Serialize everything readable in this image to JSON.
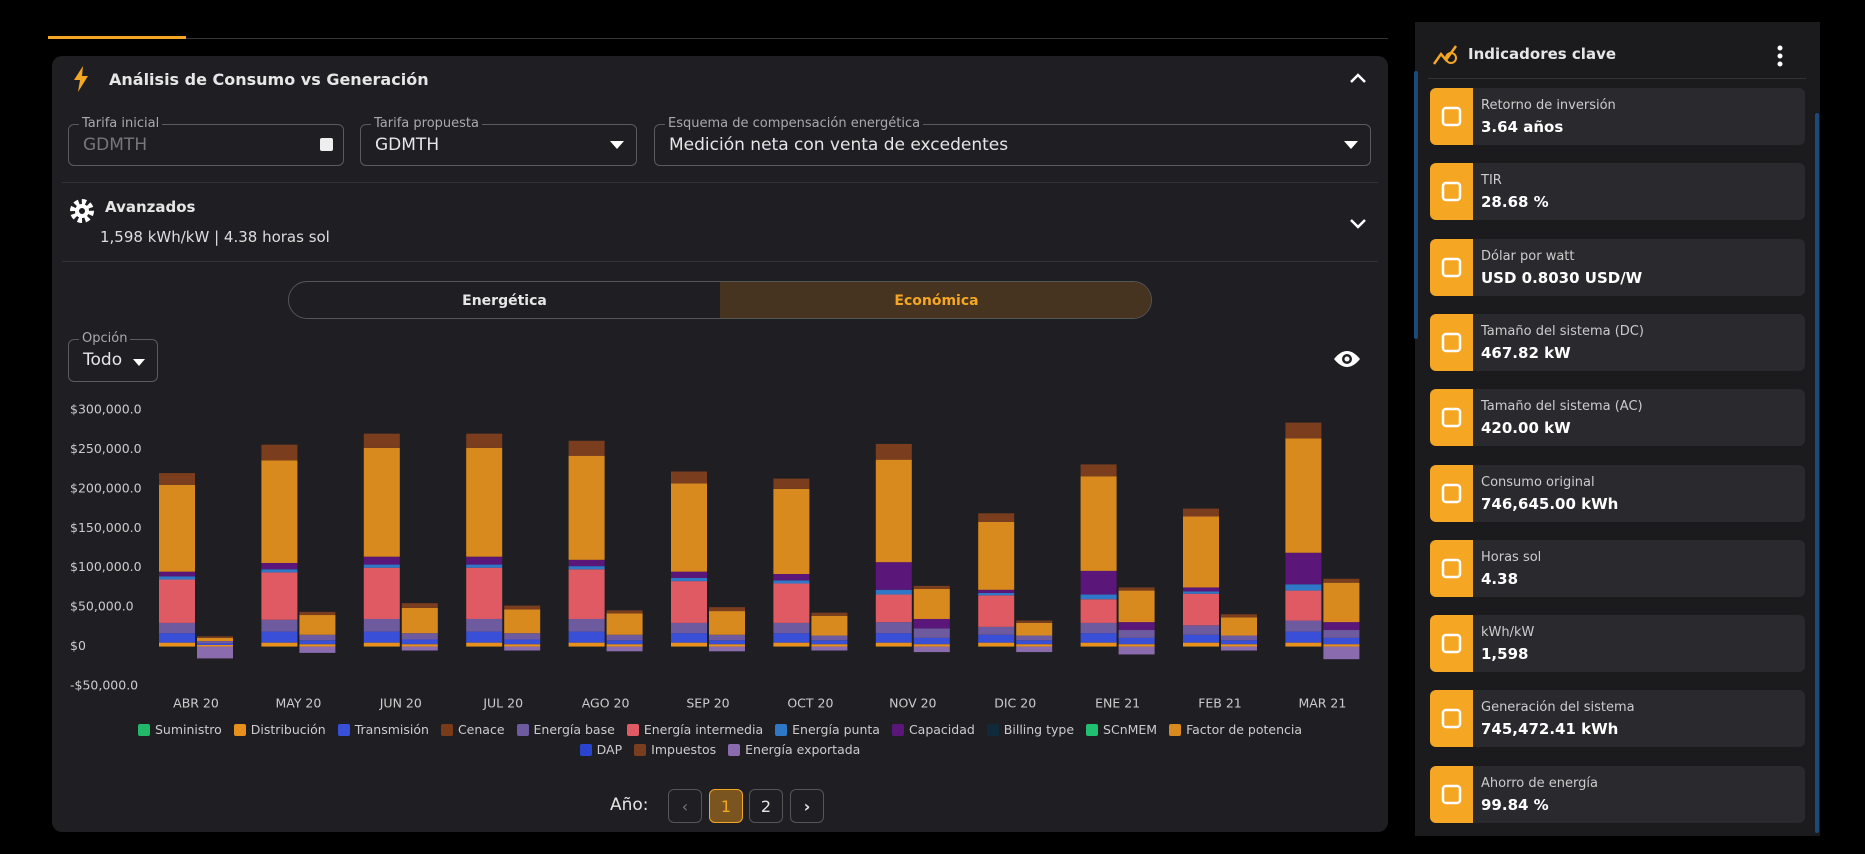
{
  "section": {
    "title": "Análisis de Consumo vs Generación"
  },
  "fields": [
    {
      "label": "Tarifa inicial",
      "value": "GDMTH"
    },
    {
      "label": "Tarifa propuesta",
      "value": "GDMTH"
    },
    {
      "label": "Esquema de compensación energética",
      "value": "Medición neta con venta de excedentes"
    }
  ],
  "advanced": {
    "title": "Avanzados",
    "subtitle": "1,598 kWh/kW | 4.38 horas sol"
  },
  "toggle": [
    "Energética",
    "Económica"
  ],
  "option": {
    "label": "Opción",
    "value": "Todo"
  },
  "chart_data": {
    "type": "bar",
    "stacked": true,
    "grid": false,
    "categories": [
      "ABR 20",
      "MAY 20",
      "JUN 20",
      "JUL 20",
      "AGO 20",
      "SEP 20",
      "OCT 20",
      "NOV 20",
      "DIC 20",
      "ENE 21",
      "FEB 21",
      "MAR 21"
    ],
    "ylim": [
      -50000,
      300000
    ],
    "yticks": [
      {
        "value": -50000,
        "label": "-$50,000.0"
      },
      {
        "value": 0,
        "label": "$0"
      },
      {
        "value": 50000,
        "label": "$50,000.0"
      },
      {
        "value": 100000,
        "label": "$100,000.0"
      },
      {
        "value": 150000,
        "label": "$150,000.0"
      },
      {
        "value": 200000,
        "label": "$200,000.0"
      },
      {
        "value": 250000,
        "label": "$250,000.0"
      },
      {
        "value": 300000,
        "label": "$300,000.0"
      }
    ],
    "series": [
      {
        "name": "Suministro",
        "color": "#22b86a",
        "values": [
          0,
          0,
          0,
          0,
          0,
          0,
          0,
          0,
          0,
          0,
          0,
          0
        ],
        "values_after": [
          0,
          0,
          0,
          0,
          0,
          0,
          0,
          0,
          0,
          0,
          0,
          0
        ]
      },
      {
        "name": "Distribución",
        "color": "#e8901c",
        "values": [
          5000,
          5000,
          5000,
          5000,
          5000,
          5000,
          5000,
          5000,
          5000,
          5000,
          5000,
          5000
        ],
        "values_after": [
          2000,
          3000,
          3000,
          3000,
          3000,
          3000,
          3000,
          3000,
          3000,
          3000,
          3000,
          3000
        ]
      },
      {
        "name": "Transmisión",
        "color": "#3a4fd8",
        "values": [
          12000,
          14000,
          14000,
          14000,
          14000,
          12000,
          12000,
          12000,
          10000,
          12000,
          10000,
          14000
        ],
        "values_after": [
          2000,
          5000,
          6000,
          6000,
          5000,
          5000,
          5000,
          8000,
          5000,
          8000,
          5000,
          8000
        ]
      },
      {
        "name": "Cenace",
        "color": "#7a3b1a",
        "values": [
          0,
          0,
          0,
          0,
          0,
          0,
          0,
          0,
          0,
          0,
          0,
          0
        ],
        "values_after": [
          0,
          0,
          0,
          0,
          0,
          0,
          0,
          0,
          0,
          0,
          0,
          0
        ]
      },
      {
        "name": "Energía base",
        "color": "#6e5a9e",
        "values": [
          13000,
          15000,
          16000,
          16000,
          16000,
          13000,
          13000,
          14000,
          10000,
          13000,
          12000,
          14000
        ],
        "values_after": [
          3000,
          7000,
          8000,
          8000,
          7000,
          7000,
          6000,
          12000,
          6000,
          10000,
          6000,
          10000
        ]
      },
      {
        "name": "Energía intermedia",
        "color": "#e05a64",
        "values": [
          55000,
          60000,
          65000,
          65000,
          63000,
          53000,
          50000,
          35000,
          40000,
          30000,
          40000,
          38000
        ],
        "values_after": [
          0,
          0,
          0,
          0,
          0,
          0,
          0,
          0,
          0,
          0,
          0,
          0
        ]
      },
      {
        "name": "Energía punta",
        "color": "#2f78c8",
        "values": [
          4000,
          4000,
          4000,
          4000,
          4000,
          4000,
          4000,
          6000,
          3000,
          6000,
          3000,
          8000
        ],
        "values_after": [
          0,
          0,
          0,
          0,
          0,
          0,
          0,
          0,
          0,
          0,
          0,
          0
        ]
      },
      {
        "name": "Capacidad",
        "color": "#5a1678",
        "values": [
          6000,
          8000,
          10000,
          10000,
          8000,
          8000,
          8000,
          35000,
          4000,
          30000,
          5000,
          40000
        ],
        "values_after": [
          0,
          0,
          0,
          0,
          0,
          0,
          0,
          12000,
          0,
          10000,
          0,
          10000
        ]
      },
      {
        "name": "Billing type",
        "color": "#0f2a3a",
        "values": [
          0,
          0,
          0,
          0,
          0,
          0,
          0,
          0,
          0,
          0,
          0,
          0
        ],
        "values_after": [
          0,
          0,
          0,
          0,
          0,
          0,
          0,
          0,
          0,
          0,
          0,
          0
        ]
      },
      {
        "name": "SCnMEM",
        "color": "#20c070",
        "values": [
          0,
          0,
          0,
          0,
          0,
          0,
          0,
          0,
          0,
          0,
          0,
          0
        ],
        "values_after": [
          0,
          0,
          0,
          0,
          0,
          0,
          0,
          0,
          0,
          0,
          0,
          0
        ]
      },
      {
        "name": "Factor de potencia",
        "color": "#d98a1e",
        "values": [
          110000,
          130000,
          138000,
          138000,
          132000,
          112000,
          108000,
          130000,
          86000,
          120000,
          90000,
          145000
        ],
        "values_after": [
          4000,
          25000,
          32000,
          30000,
          27000,
          30000,
          25000,
          38000,
          16000,
          40000,
          23000,
          50000
        ]
      },
      {
        "name": "DAP",
        "color": "#2a44d0",
        "values": [
          0,
          0,
          0,
          0,
          0,
          0,
          0,
          0,
          0,
          0,
          0,
          0
        ],
        "values_after": [
          0,
          0,
          0,
          0,
          0,
          0,
          0,
          0,
          0,
          0,
          0,
          0
        ]
      },
      {
        "name": "Impuestos",
        "color": "#7a3e1e",
        "values": [
          15000,
          20000,
          18000,
          18000,
          19000,
          15000,
          13000,
          20000,
          11000,
          15000,
          10000,
          20000
        ],
        "values_after": [
          2000,
          4000,
          6000,
          5000,
          4000,
          5000,
          4000,
          4000,
          3000,
          4000,
          4000,
          5000
        ]
      },
      {
        "name": "Energía exportada",
        "color": "#8a6cae",
        "values": [
          0,
          0,
          0,
          0,
          0,
          0,
          0,
          0,
          0,
          0,
          0,
          0
        ],
        "values_after": [
          -15000,
          -8000,
          -5000,
          -5000,
          -6000,
          -6000,
          -5000,
          -7000,
          -7000,
          -10000,
          -5000,
          -16000
        ]
      }
    ]
  },
  "pagination": {
    "label": "Año:",
    "pages": [
      1,
      2
    ]
  },
  "indicators": {
    "title": "Indicadores clave",
    "items": [
      {
        "label": "Retorno de inversión",
        "value": "3.64 años"
      },
      {
        "label": "TIR",
        "value": "28.68 %"
      },
      {
        "label": "Dólar por watt",
        "value": "USD 0.8030 USD/W"
      },
      {
        "label": "Tamaño del sistema (DC)",
        "value": "467.82 kW"
      },
      {
        "label": "Tamaño del sistema (AC)",
        "value": "420.00 kW"
      },
      {
        "label": "Consumo original",
        "value": "746,645.00 kWh"
      },
      {
        "label": "Horas sol",
        "value": "4.38"
      },
      {
        "label": "kWh/kW",
        "value": "1,598"
      },
      {
        "label": "Generación del sistema",
        "value": "745,472.41 kWh"
      },
      {
        "label": "Ahorro de energía",
        "value": "99.84 %"
      }
    ]
  }
}
